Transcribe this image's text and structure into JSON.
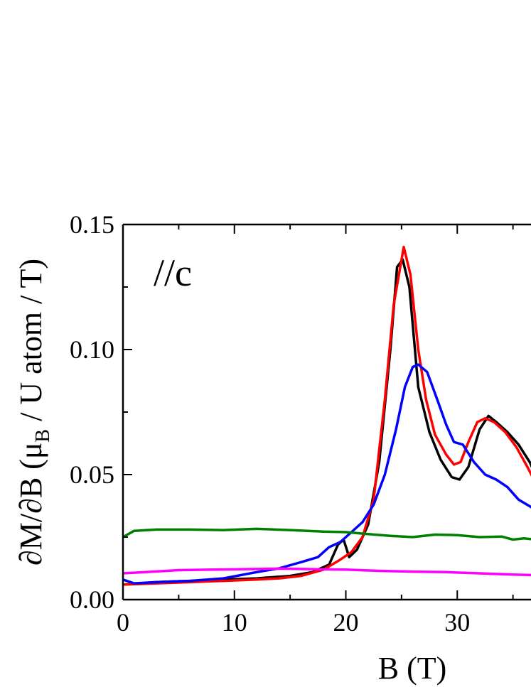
{
  "chart_data": {
    "type": "line",
    "xlabel": "B (T)",
    "ylabel_parts": {
      "pre": "∂M/∂B (μ",
      "sub": "B",
      "post": " / U atom / T)"
    },
    "annotation": "//c",
    "xlim": [
      0,
      37
    ],
    "ylim": [
      0.0,
      0.15
    ],
    "x_ticks": [
      0,
      10,
      20,
      30
    ],
    "x_tick_labels": [
      "0",
      "10",
      "20",
      "30"
    ],
    "y_ticks": [
      0.0,
      0.05,
      0.1,
      0.15
    ],
    "y_tick_labels": [
      "0.00",
      "0.05",
      "0.10",
      "0.15"
    ],
    "grid": false,
    "series": [
      {
        "color": "#000000",
        "points": [
          [
            0,
            0.006
          ],
          [
            3,
            0.007
          ],
          [
            6,
            0.0075
          ],
          [
            9,
            0.008
          ],
          [
            12,
            0.0085
          ],
          [
            15,
            0.0095
          ],
          [
            17,
            0.011
          ],
          [
            18.5,
            0.014
          ],
          [
            19.3,
            0.022
          ],
          [
            19.8,
            0.024
          ],
          [
            20.3,
            0.017
          ],
          [
            21,
            0.02
          ],
          [
            22,
            0.03
          ],
          [
            23,
            0.055
          ],
          [
            24,
            0.1
          ],
          [
            24.6,
            0.133
          ],
          [
            25.1,
            0.136
          ],
          [
            25.7,
            0.125
          ],
          [
            26.5,
            0.085
          ],
          [
            27.5,
            0.067
          ],
          [
            28.5,
            0.056
          ],
          [
            29.5,
            0.049
          ],
          [
            30.2,
            0.048
          ],
          [
            31,
            0.053
          ],
          [
            32,
            0.068
          ],
          [
            32.8,
            0.0735
          ],
          [
            33.5,
            0.071
          ],
          [
            34.5,
            0.067
          ],
          [
            35.5,
            0.062
          ],
          [
            36.5,
            0.055
          ],
          [
            37,
            0.05
          ]
        ]
      },
      {
        "color": "#ff0000",
        "points": [
          [
            0,
            0.006
          ],
          [
            3,
            0.0065
          ],
          [
            6,
            0.007
          ],
          [
            9,
            0.0075
          ],
          [
            12,
            0.008
          ],
          [
            14,
            0.0085
          ],
          [
            16,
            0.0095
          ],
          [
            18,
            0.012
          ],
          [
            19.5,
            0.016
          ],
          [
            20.5,
            0.019
          ],
          [
            21.5,
            0.025
          ],
          [
            22.5,
            0.04
          ],
          [
            23.5,
            0.08
          ],
          [
            24.3,
            0.118
          ],
          [
            25.2,
            0.141
          ],
          [
            25.8,
            0.13
          ],
          [
            26.5,
            0.1
          ],
          [
            27.2,
            0.08
          ],
          [
            28,
            0.066
          ],
          [
            29,
            0.058
          ],
          [
            29.7,
            0.054
          ],
          [
            30.3,
            0.055
          ],
          [
            31,
            0.063
          ],
          [
            31.8,
            0.071
          ],
          [
            32.5,
            0.0725
          ],
          [
            33.3,
            0.071
          ],
          [
            34.3,
            0.067
          ],
          [
            35.3,
            0.061
          ],
          [
            36.3,
            0.053
          ],
          [
            37,
            0.047
          ]
        ]
      },
      {
        "color": "#0000ff",
        "points": [
          [
            0,
            0.008
          ],
          [
            1,
            0.0065
          ],
          [
            3,
            0.007
          ],
          [
            6,
            0.0075
          ],
          [
            9,
            0.0085
          ],
          [
            12,
            0.011
          ],
          [
            14,
            0.0125
          ],
          [
            16,
            0.015
          ],
          [
            17.5,
            0.017
          ],
          [
            18.5,
            0.021
          ],
          [
            19.5,
            0.023
          ],
          [
            20.5,
            0.027
          ],
          [
            21.5,
            0.031
          ],
          [
            22.5,
            0.038
          ],
          [
            23.5,
            0.05
          ],
          [
            24.5,
            0.068
          ],
          [
            25.3,
            0.085
          ],
          [
            26,
            0.093
          ],
          [
            26.5,
            0.094
          ],
          [
            27.3,
            0.091
          ],
          [
            28.2,
            0.08
          ],
          [
            29,
            0.07
          ],
          [
            29.7,
            0.063
          ],
          [
            30.5,
            0.062
          ],
          [
            31.5,
            0.055
          ],
          [
            32.5,
            0.05
          ],
          [
            33.5,
            0.048
          ],
          [
            34.5,
            0.045
          ],
          [
            35.5,
            0.04
          ],
          [
            37,
            0.036
          ]
        ]
      },
      {
        "color": "#008000",
        "points": [
          [
            0,
            0.025
          ],
          [
            1,
            0.0275
          ],
          [
            3,
            0.028
          ],
          [
            6,
            0.028
          ],
          [
            9,
            0.0278
          ],
          [
            12,
            0.0283
          ],
          [
            15,
            0.0278
          ],
          [
            18,
            0.0272
          ],
          [
            20,
            0.027
          ],
          [
            22,
            0.0262
          ],
          [
            24,
            0.0255
          ],
          [
            26,
            0.025
          ],
          [
            28,
            0.026
          ],
          [
            30,
            0.0258
          ],
          [
            32,
            0.025
          ],
          [
            34,
            0.0252
          ],
          [
            35,
            0.024
          ],
          [
            36,
            0.0245
          ],
          [
            37,
            0.024
          ]
        ]
      },
      {
        "color": "#ff00ff",
        "points": [
          [
            0,
            0.0105
          ],
          [
            2,
            0.011
          ],
          [
            5,
            0.0118
          ],
          [
            8,
            0.012
          ],
          [
            11,
            0.0122
          ],
          [
            14,
            0.0124
          ],
          [
            17,
            0.0122
          ],
          [
            20,
            0.012
          ],
          [
            23,
            0.0115
          ],
          [
            26,
            0.0112
          ],
          [
            29,
            0.011
          ],
          [
            32,
            0.0105
          ],
          [
            35,
            0.01
          ],
          [
            37,
            0.0098
          ]
        ]
      }
    ]
  }
}
